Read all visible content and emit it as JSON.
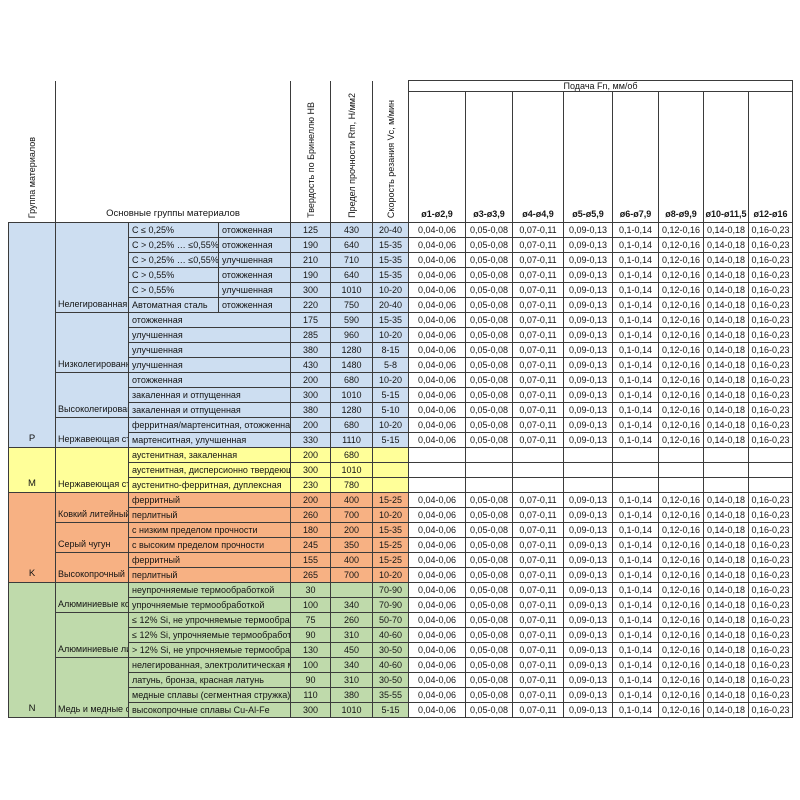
{
  "header": {
    "group_col": "Группа материалов",
    "main_groups": "Основные группы материалов",
    "hardness": "Твердость по Бринеллю HB",
    "strength": "Предел прочности Rm, Н/мм2",
    "speed": "Скорость резания Vc, м/мин",
    "feed_title": "Подача Fn, мм/об",
    "feed_cols": [
      "ø1-ø2,9",
      "ø3-ø3,9",
      "ø4-ø4,9",
      "ø5-ø5,9",
      "ø6-ø7,9",
      "ø8-ø9,9",
      "ø10-ø11,5",
      "ø12-ø16"
    ]
  },
  "feed_values": [
    "0,04-0,06",
    "0,05-0,08",
    "0,07-0,11",
    "0,09-0,13",
    "0,1-0,14",
    "0,12-0,16",
    "0,14-0,18",
    "0,16-0,23"
  ],
  "groups": [
    {
      "letter": "P",
      "color": "#CDDEF1",
      "subgroups": [
        {
          "name": "Нелегированная сталь",
          "rows": [
            {
              "c": "C ≤ 0,25%",
              "cond": "отожженная",
              "hb": "125",
              "rm": "430",
              "vc": "20-40"
            },
            {
              "c": "C > 0,25% … ≤0,55%",
              "cond": "отожженная",
              "hb": "190",
              "rm": "640",
              "vc": "15-35"
            },
            {
              "c": "C > 0,25% … ≤0,55%",
              "cond": "улучшенная",
              "hb": "210",
              "rm": "710",
              "vc": "15-35"
            },
            {
              "c": "C > 0,55%",
              "cond": "отожженная",
              "hb": "190",
              "rm": "640",
              "vc": "15-35"
            },
            {
              "c": "C > 0,55%",
              "cond": "улучшенная",
              "hb": "300",
              "rm": "1010",
              "vc": "10-20"
            },
            {
              "c": "Автоматная сталь",
              "cond": "отожженная",
              "hb": "220",
              "rm": "750",
              "vc": "20-40"
            }
          ]
        },
        {
          "name": "Низколегированная сталь",
          "rows": [
            {
              "cond": "отожженная",
              "hb": "175",
              "rm": "590",
              "vc": "15-35"
            },
            {
              "cond": "улучшенная",
              "hb": "285",
              "rm": "960",
              "vc": "10-20"
            },
            {
              "cond": "улучшенная",
              "hb": "380",
              "rm": "1280",
              "vc": "8-15"
            },
            {
              "cond": "улучшенная",
              "hb": "430",
              "rm": "1480",
              "vc": "5-8"
            }
          ]
        },
        {
          "name": "Высоколегированная сталь",
          "rows": [
            {
              "cond": "отожженная",
              "hb": "200",
              "rm": "680",
              "vc": "10-20"
            },
            {
              "cond": "закаленная и отпущенная",
              "hb": "300",
              "rm": "1010",
              "vc": "5-15"
            },
            {
              "cond": "закаленная и отпущенная",
              "hb": "380",
              "rm": "1280",
              "vc": "5-10"
            }
          ]
        },
        {
          "name": "Нержавеющая сталь",
          "rows": [
            {
              "cond": "ферритная/мартенситная, отожженная",
              "hb": "200",
              "rm": "680",
              "vc": "10-20"
            },
            {
              "cond": "мартенситная, улучшенная",
              "hb": "330",
              "rm": "1110",
              "vc": "5-15"
            }
          ]
        }
      ]
    },
    {
      "letter": "M",
      "color": "#FFFF99",
      "subgroups": [
        {
          "name": "Нержавеющая сталь",
          "rows": [
            {
              "cond": "аустенитная, закаленная",
              "hb": "200",
              "rm": "680",
              "vc": "",
              "feeds": false
            },
            {
              "cond": "аустенитная, дисперсионно твердеющая",
              "hb": "300",
              "rm": "1010",
              "vc": "",
              "feeds": false
            },
            {
              "cond": "аустенитно-ферритная, дуплексная",
              "hb": "230",
              "rm": "780",
              "vc": "",
              "feeds": false
            }
          ]
        }
      ]
    },
    {
      "letter": "K",
      "color": "#F7B183",
      "subgroups": [
        {
          "name": "Ковкий литейный чугун",
          "rows": [
            {
              "cond": "ферритный",
              "hb": "200",
              "rm": "400",
              "vc": "15-25"
            },
            {
              "cond": "перлитный",
              "hb": "260",
              "rm": "700",
              "vc": "10-20"
            }
          ]
        },
        {
          "name": "Серый чугун",
          "rows": [
            {
              "cond": "с низким пределом прочности",
              "hb": "180",
              "rm": "200",
              "vc": "15-35"
            },
            {
              "cond": "с высоким пределом прочности",
              "hb": "245",
              "rm": "350",
              "vc": "15-25"
            }
          ]
        },
        {
          "name": "Высокопрочный чугун",
          "rows": [
            {
              "cond": "ферритный",
              "hb": "155",
              "rm": "400",
              "vc": "15-25"
            },
            {
              "cond": "перлитный",
              "hb": "265",
              "rm": "700",
              "vc": "10-20"
            }
          ]
        }
      ]
    },
    {
      "letter": "N",
      "color": "#BFDAAB",
      "subgroups": [
        {
          "name": "Алюминиевые кованые сплавы",
          "rows": [
            {
              "cond": "неупрочняемые термообработкой",
              "hb": "30",
              "rm": "",
              "vc": "70-90"
            },
            {
              "cond": "упрочняемые термообработкой",
              "hb": "100",
              "rm": "340",
              "vc": "70-90"
            }
          ]
        },
        {
          "name": "Алюминиевые литейные сплавы",
          "rows": [
            {
              "cond": "≤ 12% Si, не упрочняемые термообработкой",
              "hb": "75",
              "rm": "260",
              "vc": "50-70"
            },
            {
              "cond": "≤ 12% Si, упрочняемые термообработкой",
              "hb": "90",
              "rm": "310",
              "vc": "40-60"
            },
            {
              "cond": "> 12% Si, не упрочняемые термообработкой",
              "hb": "130",
              "rm": "450",
              "vc": "30-50"
            }
          ]
        },
        {
          "name": "Медь и медные сплавы",
          "rows": [
            {
              "cond": "нелегированная, электролитическая медь",
              "hb": "100",
              "rm": "340",
              "vc": "40-60"
            },
            {
              "cond": "латунь, бронза, красная латунь",
              "hb": "90",
              "rm": "310",
              "vc": "30-50"
            },
            {
              "cond": "медные сплавы (сегментная стружка)",
              "hb": "110",
              "rm": "380",
              "vc": "35-55"
            },
            {
              "cond": "высокопрочные сплавы Cu-Al-Fe",
              "hb": "300",
              "rm": "1010",
              "vc": "5-15"
            }
          ]
        }
      ]
    }
  ]
}
